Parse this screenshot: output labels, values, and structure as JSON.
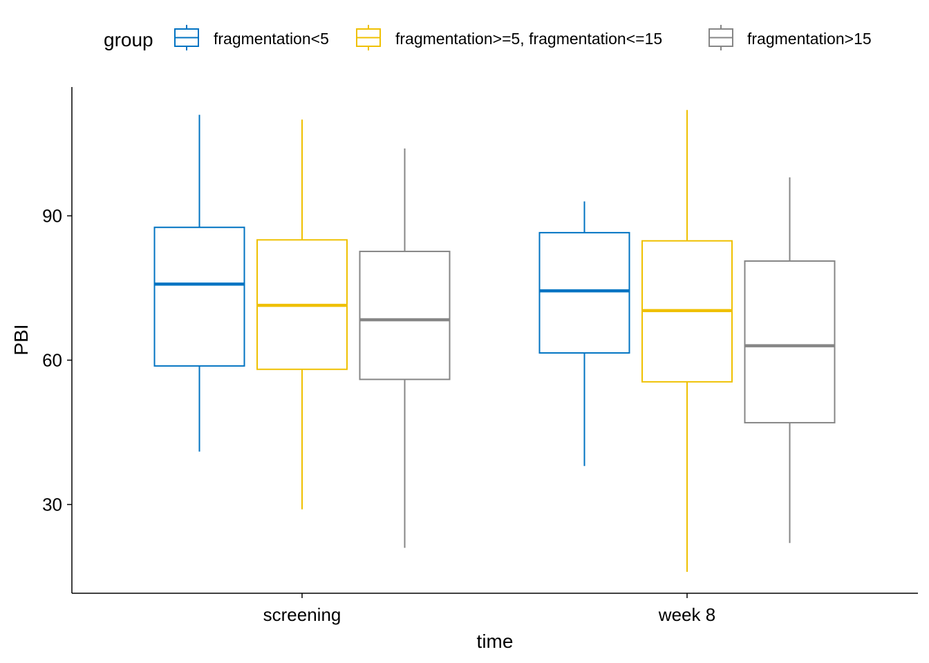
{
  "chart_data": {
    "type": "box",
    "xlabel": "time",
    "ylabel": "PBI",
    "categories": [
      "screening",
      "week 8"
    ],
    "ylim": [
      10,
      117
    ],
    "yticks": [
      30,
      60,
      90
    ],
    "legend": {
      "title": "group",
      "position": "top"
    },
    "series": [
      {
        "name": "fragmentation<5",
        "color": "#0073C2",
        "boxes": [
          {
            "category": "screening",
            "whisker_low": 41,
            "q1": 58.8,
            "median": 75.8,
            "q3": 87.6,
            "whisker_high": 111
          },
          {
            "category": "week 8",
            "whisker_low": 38,
            "q1": 61.5,
            "median": 74.4,
            "q3": 86.5,
            "whisker_high": 93
          }
        ]
      },
      {
        "name": "fragmentation>=5, fragmentation<=15",
        "color": "#EFC000",
        "boxes": [
          {
            "category": "screening",
            "whisker_low": 29,
            "q1": 58.1,
            "median": 71.4,
            "q3": 85,
            "whisker_high": 110
          },
          {
            "category": "week 8",
            "whisker_low": 16,
            "q1": 55.5,
            "median": 70.3,
            "q3": 84.8,
            "whisker_high": 112
          }
        ]
      },
      {
        "name": "fragmentation>15",
        "color": "#868686",
        "boxes": [
          {
            "category": "screening",
            "whisker_low": 21,
            "q1": 56,
            "median": 68.4,
            "q3": 82.6,
            "whisker_high": 104
          },
          {
            "category": "week 8",
            "whisker_low": 22,
            "q1": 47,
            "median": 63,
            "q3": 80.6,
            "whisker_high": 98
          }
        ]
      }
    ]
  }
}
